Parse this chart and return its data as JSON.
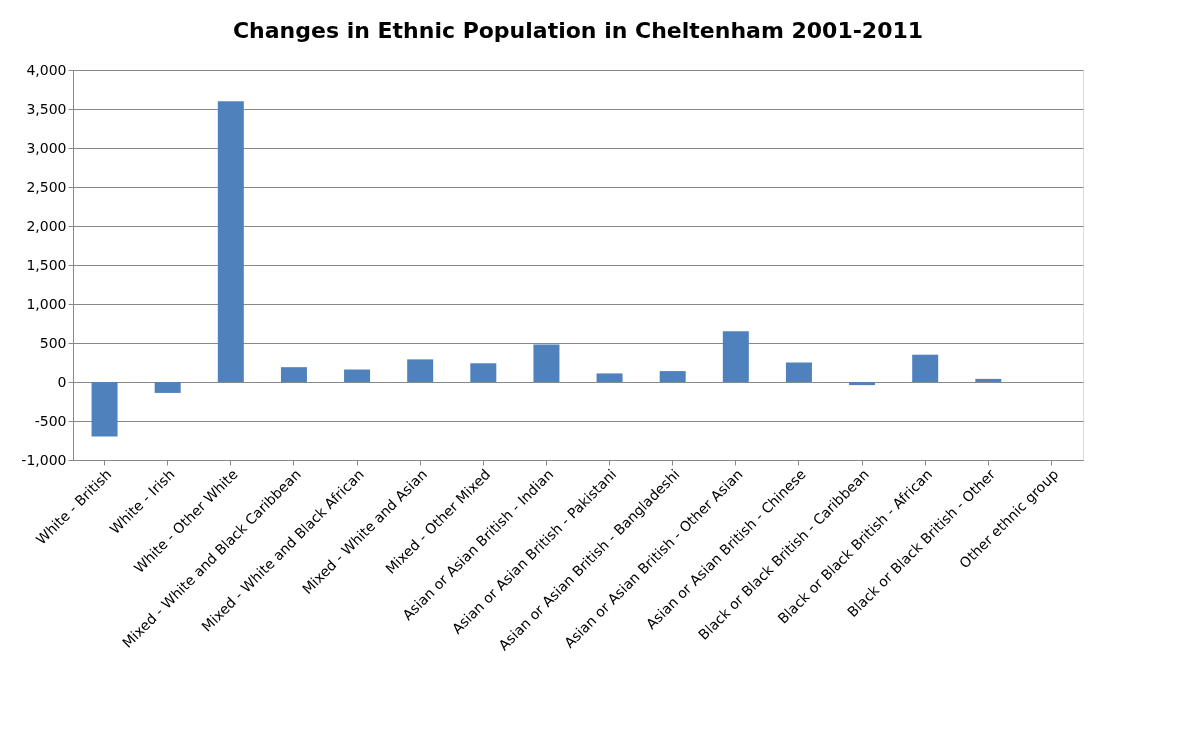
{
  "chart_data": {
    "type": "bar",
    "title": "Changes in Ethnic Population in Cheltenham 2001-2011",
    "categories": [
      "White - British",
      "White - Irish",
      "White - Other White",
      "Mixed - White and Black Caribbean",
      "Mixed - White and Black African",
      "Mixed - White and Asian",
      "Mixed - Other Mixed",
      "Asian or Asian British - Indian",
      "Asian or Asian British - Pakistani",
      "Asian or Asian British - Bangladeshi",
      "Asian or Asian British - Other Asian",
      "Asian or Asian British - Chinese",
      "Black or Black British - Caribbean",
      "Black or Black British - African",
      "Black or Black British - Other",
      "Other ethnic group"
    ],
    "values": [
      -700,
      -140,
      3600,
      190,
      160,
      290,
      240,
      480,
      110,
      140,
      650,
      250,
      -40,
      350,
      40,
      0
    ],
    "color": "#4f81bd",
    "ylim": [
      -1000,
      4000
    ],
    "yticks": [
      {
        "value": -1000,
        "label": "-1,000"
      },
      {
        "value": -500,
        "label": "-500"
      },
      {
        "value": 0,
        "label": "0"
      },
      {
        "value": 500,
        "label": "500"
      },
      {
        "value": 1000,
        "label": "1,000"
      },
      {
        "value": 1500,
        "label": "1,500"
      },
      {
        "value": 2000,
        "label": "2,000"
      },
      {
        "value": 2500,
        "label": "2,500"
      },
      {
        "value": 3000,
        "label": "3,000"
      },
      {
        "value": 3500,
        "label": "3,500"
      },
      {
        "value": 4000,
        "label": "4,000"
      }
    ],
    "grid": "y"
  }
}
